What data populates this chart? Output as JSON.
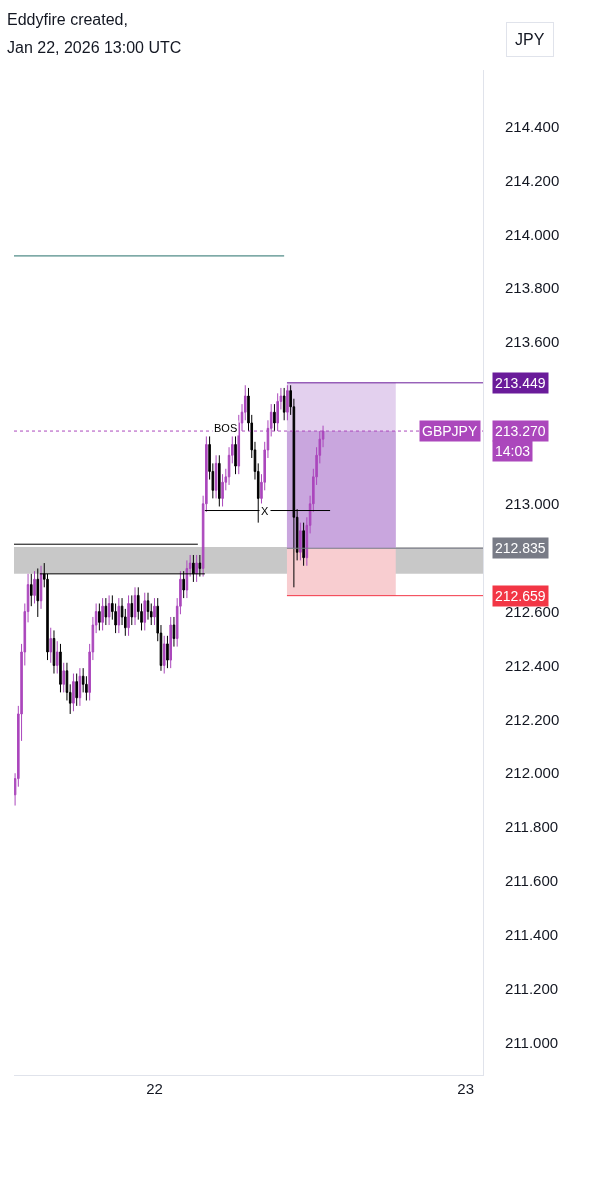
{
  "chart_data": {
    "type": "candlestick",
    "title": "Eddyfire created,",
    "subtitle": "Jan 22, 2026 13:00 UTC",
    "ylabel": "JPY",
    "x": [
      "2026-01-21T13:15",
      "2026-01-21T13:30",
      "2026-01-21T13:45",
      "2026-01-21T14:00",
      "2026-01-21T14:15",
      "2026-01-21T14:30",
      "2026-01-21T14:45",
      "2026-01-21T15:00",
      "2026-01-21T15:15",
      "2026-01-21T15:30",
      "2026-01-21T15:45",
      "2026-01-21T16:00",
      "2026-01-21T16:15",
      "2026-01-21T16:30",
      "2026-01-21T16:45",
      "2026-01-21T17:00",
      "2026-01-21T17:15",
      "2026-01-21T17:30",
      "2026-01-21T17:45",
      "2026-01-21T18:00",
      "2026-01-21T18:15",
      "2026-01-21T18:30",
      "2026-01-21T18:45",
      "2026-01-21T19:00",
      "2026-01-21T19:15",
      "2026-01-21T19:30",
      "2026-01-21T19:45",
      "2026-01-21T20:00",
      "2026-01-21T20:15",
      "2026-01-21T20:30",
      "2026-01-21T20:45",
      "2026-01-21T21:00",
      "2026-01-21T21:15",
      "2026-01-21T21:30",
      "2026-01-21T21:45",
      "2026-01-21T22:00",
      "2026-01-21T22:15",
      "2026-01-21T22:30",
      "2026-01-21T22:45",
      "2026-01-21T23:00",
      "2026-01-21T23:15",
      "2026-01-21T23:30",
      "2026-01-21T23:45",
      "2026-01-22T00:00",
      "2026-01-22T00:15",
      "2026-01-22T00:30",
      "2026-01-22T00:45",
      "2026-01-22T01:00",
      "2026-01-22T01:15",
      "2026-01-22T01:30",
      "2026-01-22T01:45",
      "2026-01-22T02:00",
      "2026-01-22T02:15",
      "2026-01-22T02:30",
      "2026-01-22T02:45",
      "2026-01-22T03:00",
      "2026-01-22T03:15",
      "2026-01-22T03:30",
      "2026-01-22T03:45",
      "2026-01-22T04:00",
      "2026-01-22T04:15",
      "2026-01-22T04:30",
      "2026-01-22T04:45",
      "2026-01-22T05:00",
      "2026-01-22T05:15",
      "2026-01-22T05:30",
      "2026-01-22T05:45",
      "2026-01-22T06:00",
      "2026-01-22T06:15",
      "2026-01-22T06:30",
      "2026-01-22T06:45",
      "2026-01-22T07:00",
      "2026-01-22T07:15",
      "2026-01-22T07:30",
      "2026-01-22T07:45",
      "2026-01-22T08:00",
      "2026-01-22T08:15",
      "2026-01-22T08:30",
      "2026-01-22T08:45",
      "2026-01-22T09:00",
      "2026-01-22T09:15",
      "2026-01-22T09:30",
      "2026-01-22T09:45",
      "2026-01-22T10:00",
      "2026-01-22T10:15",
      "2026-01-22T10:30",
      "2026-01-22T10:45",
      "2026-01-22T11:00",
      "2026-01-22T11:15",
      "2026-01-22T11:30",
      "2026-01-22T11:45",
      "2026-01-22T12:00",
      "2026-01-22T12:15",
      "2026-01-22T12:30",
      "2026-01-22T12:45",
      "2026-01-22T13:00"
    ],
    "ohlc": [
      [
        211.92,
        212.0,
        211.88,
        211.98
      ],
      [
        211.98,
        212.25,
        211.95,
        212.22
      ],
      [
        212.22,
        212.48,
        212.12,
        212.45
      ],
      [
        212.45,
        212.63,
        212.4,
        212.6
      ],
      [
        212.6,
        212.74,
        212.56,
        212.7
      ],
      [
        212.7,
        212.74,
        212.62,
        212.66
      ],
      [
        212.66,
        212.75,
        212.63,
        212.72
      ],
      [
        212.72,
        212.76,
        212.58,
        212.64
      ],
      [
        212.64,
        212.77,
        212.61,
        212.74
      ],
      [
        212.74,
        212.78,
        212.69,
        212.72
      ],
      [
        212.72,
        212.74,
        212.42,
        212.45
      ],
      [
        212.45,
        212.54,
        212.41,
        212.5
      ],
      [
        212.5,
        212.53,
        212.37,
        212.4
      ],
      [
        212.4,
        212.49,
        212.37,
        212.45
      ],
      [
        212.45,
        212.48,
        212.3,
        212.33
      ],
      [
        212.33,
        212.41,
        212.3,
        212.38
      ],
      [
        212.38,
        212.41,
        212.27,
        212.3
      ],
      [
        212.3,
        212.33,
        212.22,
        212.26
      ],
      [
        212.26,
        212.37,
        212.23,
        212.34
      ],
      [
        212.34,
        212.37,
        212.25,
        212.28
      ],
      [
        212.28,
        212.39,
        212.25,
        212.36
      ],
      [
        212.36,
        212.39,
        212.3,
        212.33
      ],
      [
        212.33,
        212.36,
        212.27,
        212.3
      ],
      [
        212.3,
        212.48,
        212.27,
        212.45
      ],
      [
        212.45,
        212.58,
        212.42,
        212.55
      ],
      [
        212.55,
        212.63,
        212.52,
        212.6
      ],
      [
        212.6,
        212.63,
        212.53,
        212.56
      ],
      [
        212.56,
        212.65,
        212.53,
        212.62
      ],
      [
        212.62,
        212.65,
        212.55,
        212.58
      ],
      [
        212.58,
        212.66,
        212.55,
        212.63
      ],
      [
        212.63,
        212.66,
        212.57,
        212.6
      ],
      [
        212.6,
        212.63,
        212.52,
        212.55
      ],
      [
        212.55,
        212.65,
        212.52,
        212.62
      ],
      [
        212.62,
        212.65,
        212.55,
        212.58
      ],
      [
        212.58,
        212.61,
        212.51,
        212.54
      ],
      [
        212.54,
        212.66,
        212.51,
        212.63
      ],
      [
        212.63,
        212.66,
        212.55,
        212.58
      ],
      [
        212.58,
        212.69,
        212.55,
        212.66
      ],
      [
        212.66,
        212.69,
        212.57,
        212.6
      ],
      [
        212.6,
        212.63,
        212.53,
        212.56
      ],
      [
        212.56,
        212.67,
        212.53,
        212.64
      ],
      [
        212.64,
        212.67,
        212.57,
        212.6
      ],
      [
        212.6,
        212.63,
        212.55,
        212.58
      ],
      [
        212.58,
        212.65,
        212.55,
        212.62
      ],
      [
        212.62,
        212.65,
        212.49,
        212.52
      ],
      [
        212.52,
        212.55,
        212.38,
        212.4
      ],
      [
        212.4,
        212.51,
        212.37,
        212.48
      ],
      [
        212.48,
        212.51,
        212.39,
        212.42
      ],
      [
        212.42,
        212.58,
        212.39,
        212.55
      ],
      [
        212.55,
        212.58,
        212.47,
        212.5
      ],
      [
        212.5,
        212.65,
        212.47,
        212.62
      ],
      [
        212.62,
        212.75,
        212.59,
        212.72
      ],
      [
        212.72,
        212.75,
        212.65,
        212.68
      ],
      [
        212.68,
        212.79,
        212.65,
        212.76
      ],
      [
        212.76,
        212.81,
        212.73,
        212.78
      ],
      [
        212.78,
        212.81,
        212.71,
        212.74
      ],
      [
        212.74,
        212.81,
        212.71,
        212.78
      ],
      [
        212.78,
        212.81,
        212.73,
        212.76
      ],
      [
        212.76,
        213.03,
        212.73,
        213.0
      ],
      [
        213.0,
        213.25,
        212.97,
        213.22
      ],
      [
        213.22,
        213.25,
        213.09,
        213.12
      ],
      [
        213.12,
        213.15,
        213.02,
        213.05
      ],
      [
        213.05,
        213.18,
        213.02,
        213.15
      ],
      [
        213.15,
        213.18,
        212.99,
        213.02
      ],
      [
        213.02,
        213.11,
        212.99,
        213.08
      ],
      [
        213.08,
        213.13,
        213.05,
        213.1
      ],
      [
        213.1,
        213.21,
        213.07,
        213.18
      ],
      [
        213.18,
        213.25,
        213.15,
        213.22
      ],
      [
        213.22,
        213.25,
        213.11,
        213.14
      ],
      [
        213.14,
        213.33,
        213.11,
        213.3
      ],
      [
        213.3,
        213.37,
        213.27,
        213.34
      ],
      [
        213.34,
        213.44,
        213.31,
        213.4
      ],
      [
        213.4,
        213.43,
        213.27,
        213.3
      ],
      [
        213.3,
        213.33,
        213.17,
        213.2
      ],
      [
        213.2,
        213.23,
        213.09,
        213.12
      ],
      [
        213.12,
        213.15,
        212.93,
        213.02
      ],
      [
        213.02,
        213.11,
        212.99,
        213.08
      ],
      [
        213.08,
        213.23,
        213.05,
        213.2
      ],
      [
        213.2,
        213.31,
        213.17,
        213.28
      ],
      [
        213.28,
        213.37,
        213.25,
        213.34
      ],
      [
        213.34,
        213.37,
        213.27,
        213.3
      ],
      [
        213.3,
        213.41,
        213.27,
        213.38
      ],
      [
        213.38,
        213.43,
        213.35,
        213.4
      ],
      [
        213.4,
        213.43,
        213.31,
        213.34
      ],
      [
        213.34,
        213.44,
        213.31,
        213.42
      ],
      [
        213.42,
        213.44,
        213.33,
        213.36
      ],
      [
        213.36,
        213.39,
        212.69,
        212.95
      ],
      [
        212.95,
        212.98,
        212.79,
        212.82
      ],
      [
        212.82,
        212.93,
        212.79,
        212.9
      ],
      [
        212.9,
        212.93,
        212.77,
        212.8
      ],
      [
        212.8,
        212.95,
        212.77,
        212.92
      ],
      [
        212.92,
        213.03,
        212.89,
        213.0
      ],
      [
        213.0,
        213.13,
        212.97,
        213.1
      ],
      [
        213.1,
        213.21,
        213.07,
        213.18
      ],
      [
        213.18,
        213.27,
        213.15,
        213.24
      ],
      [
        213.24,
        213.29,
        213.21,
        213.27
      ]
    ],
    "colors": [
      "#ab47bc",
      "#ab47bc",
      "#ab47bc",
      "#ab47bc",
      "#ab47bc",
      "#000000",
      "#ab47bc",
      "#000000",
      "#ab47bc",
      "#000000",
      "#000000",
      "#ab47bc",
      "#000000",
      "#ab47bc",
      "#000000",
      "#ab47bc",
      "#000000",
      "#000000",
      "#ab47bc",
      "#000000",
      "#ab47bc",
      "#000000",
      "#000000",
      "#ab47bc",
      "#ab47bc",
      "#ab47bc",
      "#000000",
      "#ab47bc",
      "#000000",
      "#ab47bc",
      "#000000",
      "#000000",
      "#ab47bc",
      "#000000",
      "#000000",
      "#ab47bc",
      "#000000",
      "#ab47bc",
      "#000000",
      "#000000",
      "#ab47bc",
      "#000000",
      "#000000",
      "#ab47bc",
      "#000000",
      "#000000",
      "#ab47bc",
      "#000000",
      "#ab47bc",
      "#000000",
      "#ab47bc",
      "#ab47bc",
      "#000000",
      "#ab47bc",
      "#ab47bc",
      "#000000",
      "#ab47bc",
      "#000000",
      "#ab47bc",
      "#ab47bc",
      "#000000",
      "#000000",
      "#ab47bc",
      "#000000",
      "#ab47bc",
      "#ab47bc",
      "#ab47bc",
      "#ab47bc",
      "#000000",
      "#ab47bc",
      "#ab47bc",
      "#ab47bc",
      "#000000",
      "#000000",
      "#000000",
      "#000000",
      "#ab47bc",
      "#ab47bc",
      "#ab47bc",
      "#ab47bc",
      "#000000",
      "#ab47bc",
      "#ab47bc",
      "#000000",
      "#ab47bc",
      "#000000",
      "#000000",
      "#000000",
      "#ab47bc",
      "#000000",
      "#ab47bc",
      "#ab47bc",
      "#ab47bc",
      "#ab47bc",
      "#ab47bc",
      "#ab47bc"
    ],
    "xlim": [
      "2026-01-21T13:10",
      "2026-01-23T01:20"
    ],
    "xticks": [
      {
        "value": "2026-01-22",
        "label": "22"
      },
      {
        "value": "2026-01-23",
        "label": "23"
      }
    ],
    "ylim": [
      210.88,
      214.61
    ],
    "yticks": [
      {
        "value": 211.0,
        "label": "211.000"
      },
      {
        "value": 211.2,
        "label": "211.200"
      },
      {
        "value": 211.4,
        "label": "211.400"
      },
      {
        "value": 211.6,
        "label": "211.600"
      },
      {
        "value": 211.8,
        "label": "211.800"
      },
      {
        "value": 212.0,
        "label": "212.000"
      },
      {
        "value": 212.2,
        "label": "212.200"
      },
      {
        "value": 212.4,
        "label": "212.400"
      },
      {
        "value": 212.6,
        "label": "212.600"
      },
      {
        "value": 213.0,
        "label": "213.000"
      },
      {
        "value": 213.6,
        "label": "213.600"
      },
      {
        "value": 213.8,
        "label": "213.800"
      },
      {
        "value": 214.0,
        "label": "214.000"
      },
      {
        "value": 214.2,
        "label": "214.200"
      },
      {
        "value": 214.4,
        "label": "214.400"
      }
    ],
    "ref_lines": [
      {
        "axis": "y",
        "value": 213.92,
        "label": null,
        "color": "#26706b",
        "line_style": "solid"
      },
      {
        "axis": "y",
        "value": 212.85,
        "label": null,
        "color": "#000000",
        "line_style": "solid"
      },
      {
        "axis": "y",
        "value": 212.74,
        "label": null,
        "color": "#000000",
        "line_style": "solid"
      },
      {
        "axis": "y",
        "value": 212.975,
        "label": null,
        "color": "#000000",
        "line_style": "solid"
      },
      {
        "axis": "y",
        "value": 213.449,
        "label": "213.449",
        "color": "#6a1b9a",
        "line_style": "solid"
      },
      {
        "axis": "y",
        "value": 213.27,
        "label": "213.270",
        "color": "#ab47bc",
        "line_style": "dotted"
      },
      {
        "axis": "y",
        "value": 212.835,
        "label": "212.835",
        "color": "#787b86",
        "line_style": "solid"
      },
      {
        "axis": "y",
        "value": 212.659,
        "label": "212.659",
        "color": "#f23645",
        "line_style": "solid"
      }
    ],
    "bands": [
      {
        "axis": "y",
        "from": 212.74,
        "to": 212.84,
        "color": "#c8c8c8"
      },
      {
        "axis": "y",
        "from": 212.835,
        "to": 213.449,
        "color": "#e3d0ee"
      },
      {
        "axis": "y",
        "from": 212.835,
        "to": 213.27,
        "color": "#c9a6de"
      },
      {
        "axis": "y",
        "from": 212.659,
        "to": 212.835,
        "color": "#f8cdd0"
      }
    ],
    "annotations": [
      {
        "text": "BOS",
        "x": "2026-01-22T05:30",
        "y": 213.28
      },
      {
        "text": "X",
        "x": "2026-01-22T08:30",
        "y": 212.975
      },
      "GBPJPY",
      "14:03"
    ],
    "grid": false
  }
}
